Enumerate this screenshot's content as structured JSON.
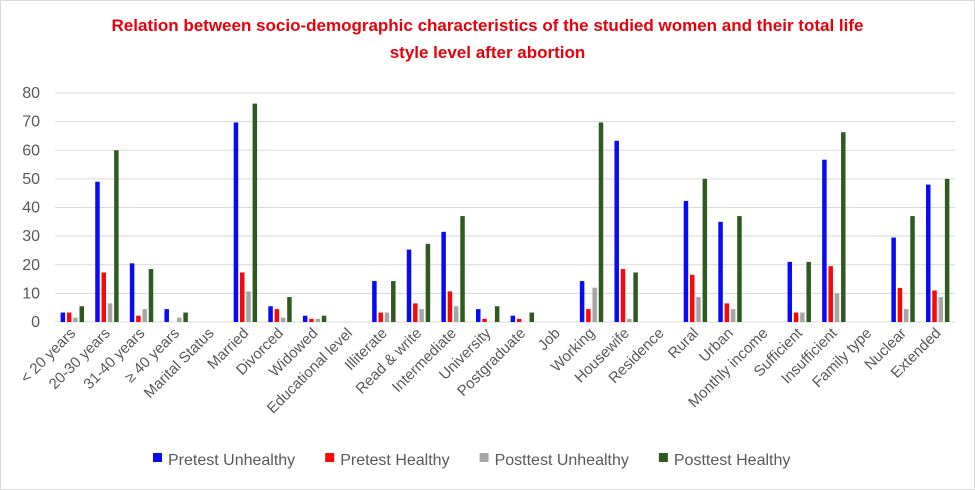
{
  "chart_data": {
    "type": "bar",
    "title": "Relation between socio-demographic characteristics of the studied women and their total life style level after abortion",
    "categories": [
      "< 20 years",
      "20-30 years",
      "31-40 years",
      "≥ 40 years",
      "Marital Status",
      "Married",
      "Divorced",
      "Widowed",
      "Educational level",
      "Illiterate",
      "Read & write",
      "Intermediate",
      "University",
      "Postgraduate",
      "Job",
      "Working",
      "Housewife",
      "Residence",
      "Rural",
      "Urban",
      "Monthly income",
      "Sufficient",
      "Insufficient",
      "Family type",
      "Nuclear",
      "Extended"
    ],
    "series": [
      {
        "name": "Pretest Unhealthy",
        "color": "#0a0af5",
        "values": [
          3.3,
          49,
          20.5,
          4.5,
          null,
          69.7,
          5.5,
          2.2,
          null,
          14.3,
          25.3,
          31.5,
          4.5,
          2.2,
          null,
          14.3,
          63.3,
          null,
          42.3,
          35,
          null,
          21,
          56.7,
          null,
          29.5,
          48
        ]
      },
      {
        "name": "Pretest Healthy",
        "color": "#f50a0a",
        "values": [
          3.3,
          17.3,
          2.2,
          0,
          null,
          17.3,
          4.5,
          1.1,
          null,
          3.3,
          6.5,
          10.7,
          1.1,
          1.1,
          null,
          4.5,
          18.5,
          null,
          16.5,
          6.5,
          null,
          3.3,
          19.5,
          null,
          11.9,
          11
        ]
      },
      {
        "name": "Posttest Unhealthy",
        "color": "#a6a6a6",
        "values": [
          1.5,
          6.5,
          4.5,
          1.5,
          null,
          10.7,
          1.5,
          1.1,
          null,
          3.3,
          4.5,
          5.5,
          0,
          0,
          null,
          12,
          1.1,
          null,
          8.7,
          4.5,
          null,
          3.3,
          10,
          null,
          4.5,
          8.7
        ]
      },
      {
        "name": "Posttest Healthy",
        "color": "#2e5a1f",
        "values": [
          5.5,
          60,
          18.5,
          3.3,
          null,
          76.3,
          8.7,
          2.2,
          null,
          14.3,
          27.3,
          37,
          5.5,
          3.3,
          null,
          69.7,
          17.3,
          null,
          50,
          37,
          null,
          21,
          66.3,
          null,
          37,
          50
        ]
      }
    ],
    "ylim": [
      0,
      80
    ],
    "yticks": [
      0,
      10,
      20,
      30,
      40,
      50,
      60,
      70,
      80
    ],
    "grid": true,
    "legend": "bottom"
  }
}
